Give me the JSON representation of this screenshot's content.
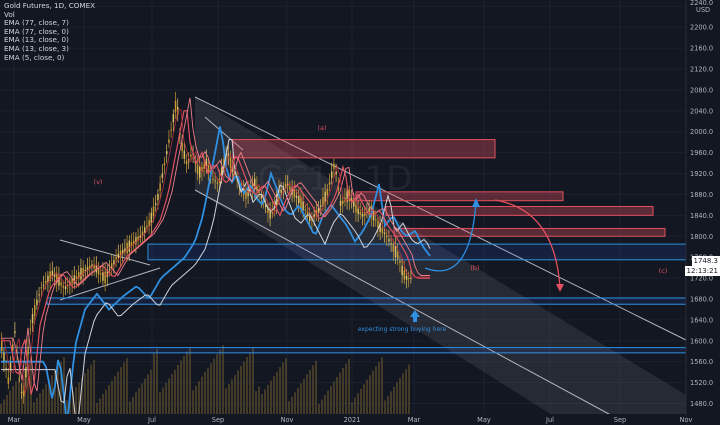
{
  "chart_data": {
    "type": "candlestick",
    "symbol": "Gold Futures, 1D, COMEX",
    "watermark": "GC1!, 1D",
    "indicators": [
      "Vol",
      "EMA (77, close, 7)",
      "EMA (77, close, 0)",
      "EMA (13, close, 0)",
      "EMA (13, close, 3)",
      "EMA (5, close, 0)"
    ],
    "currency": "USD",
    "y_ticks": [
      1480,
      1520,
      1560,
      1600,
      1640,
      1680,
      1720,
      1760,
      1800,
      1840,
      1880,
      1920,
      1960,
      2000,
      2040,
      2080,
      2120,
      2160,
      2200,
      2240
    ],
    "y_top_label": "2240.0",
    "ylim": [
      1460,
      2252
    ],
    "x_ticks": [
      "Mar",
      "May",
      "Jul",
      "Sep",
      "Nov",
      "2021",
      "Mar",
      "May",
      "Jul",
      "Sep",
      "Nov"
    ],
    "last_price": "1748.3",
    "countdown": "12:13:21",
    "annotations": {
      "wave_v": "(v)",
      "wave_a": "(a)",
      "wave_b": "(b)",
      "wave_c": "(c)",
      "buying_note": "expecting strong buying here"
    },
    "price_path": [
      [
        0,
        1600
      ],
      [
        8,
        1520
      ],
      [
        14,
        1620
      ],
      [
        22,
        1480
      ],
      [
        30,
        1630
      ],
      [
        40,
        1700
      ],
      [
        52,
        1730
      ],
      [
        64,
        1700
      ],
      [
        78,
        1725
      ],
      [
        92,
        1745
      ],
      [
        104,
        1720
      ],
      [
        116,
        1760
      ],
      [
        128,
        1780
      ],
      [
        140,
        1800
      ],
      [
        150,
        1830
      ],
      [
        158,
        1880
      ],
      [
        166,
        1960
      ],
      [
        172,
        2020
      ],
      [
        176,
        2060
      ],
      [
        180,
        1980
      ],
      [
        186,
        1940
      ],
      [
        192,
        1960
      ],
      [
        198,
        1920
      ],
      [
        206,
        1940
      ],
      [
        212,
        1910
      ],
      [
        218,
        1900
      ],
      [
        226,
        1960
      ],
      [
        232,
        1930
      ],
      [
        240,
        1890
      ],
      [
        246,
        1880
      ],
      [
        254,
        1900
      ],
      [
        262,
        1870
      ],
      [
        270,
        1840
      ],
      [
        278,
        1880
      ],
      [
        286,
        1900
      ],
      [
        294,
        1880
      ],
      [
        302,
        1860
      ],
      [
        310,
        1830
      ],
      [
        318,
        1850
      ],
      [
        326,
        1880
      ],
      [
        334,
        1940
      ],
      [
        340,
        1860
      ],
      [
        348,
        1880
      ],
      [
        356,
        1850
      ],
      [
        362,
        1840
      ],
      [
        370,
        1850
      ],
      [
        378,
        1820
      ],
      [
        386,
        1800
      ],
      [
        392,
        1780
      ],
      [
        398,
        1760
      ],
      [
        402,
        1730
      ],
      [
        406,
        1720
      ]
    ],
    "zones": {
      "red": [
        {
          "top": 1985,
          "bottom": 1950,
          "x0": 233,
          "x1": 495
        },
        {
          "top": 1885,
          "bottom": 1868,
          "x0": 356,
          "x1": 563
        },
        {
          "top": 1857,
          "bottom": 1840,
          "x0": 386,
          "x1": 653
        },
        {
          "top": 1815,
          "bottom": 1800,
          "x0": 394,
          "x1": 665
        }
      ],
      "blue": [
        {
          "top": 1785,
          "bottom": 1755,
          "x0": 148,
          "x1": 686
        },
        {
          "top": 1682,
          "bottom": 1670,
          "x0": 47,
          "x1": 686
        },
        {
          "top": 1587,
          "bottom": 1577,
          "x0": 0,
          "x1": 686
        }
      ]
    }
  }
}
